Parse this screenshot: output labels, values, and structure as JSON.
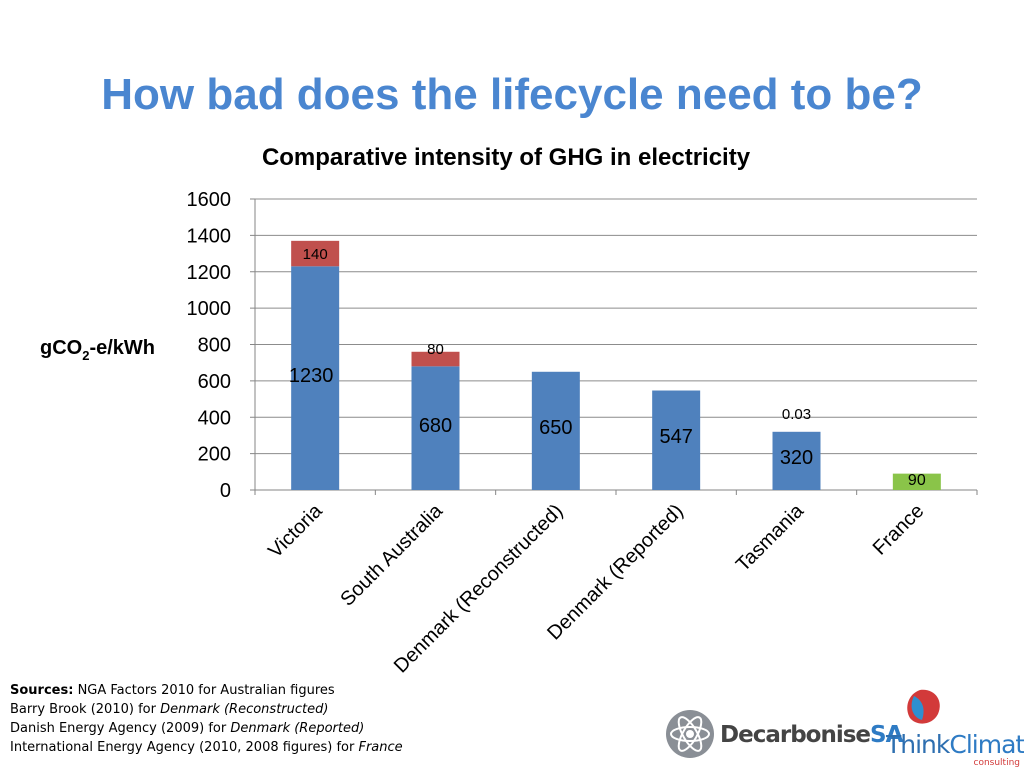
{
  "slide_title": "How bad does the lifecycle need to be?",
  "sources": {
    "label": "Sources:",
    "line1": "NGA Factors 2010 for Australian figures",
    "line2_text": "Barry Brook (2010) for ",
    "line2_italic": "Denmark (Reconstructed)",
    "line3_text": "Danish Energy Agency (2009) for ",
    "line3_italic": "Denmark (Reported)",
    "line4_text": "International Energy Agency (2010, 2008 figures) for ",
    "line4_italic": "France"
  },
  "logos": {
    "decarbonise_main": "Decarbonise",
    "decarbonise_sa": "SA",
    "think": "Think",
    "climate": "Climate",
    "consulting": "consulting"
  },
  "colors": {
    "base": "#4f81bd",
    "top": "#c0504d",
    "france": "#8ac449",
    "title": "#4a86d0"
  },
  "chart_data": {
    "type": "bar",
    "stacked": true,
    "title": "Comparative intensity of GHG in electricity",
    "ylabel_main": "gCO",
    "ylabel_sub": "2",
    "ylabel_rest": "-e/kWh",
    "ylim": [
      0,
      1600
    ],
    "yticks": [
      0,
      200,
      400,
      600,
      800,
      1000,
      1200,
      1400,
      1600
    ],
    "grid": true,
    "categories": [
      "Victoria",
      "South Australia",
      "Denmark (Reconstructed)",
      "Denmark (Reported)",
      "Tasmania",
      "France"
    ],
    "series": [
      {
        "values": [
          1230,
          680,
          650,
          547,
          320,
          90
        ],
        "labels": [
          "1230",
          "680",
          "650",
          "547",
          "320",
          "90"
        ]
      },
      {
        "values": [
          140,
          80,
          0,
          0,
          0.03,
          0
        ],
        "labels": [
          "140",
          "80",
          "",
          "",
          "0.03",
          ""
        ]
      }
    ]
  }
}
